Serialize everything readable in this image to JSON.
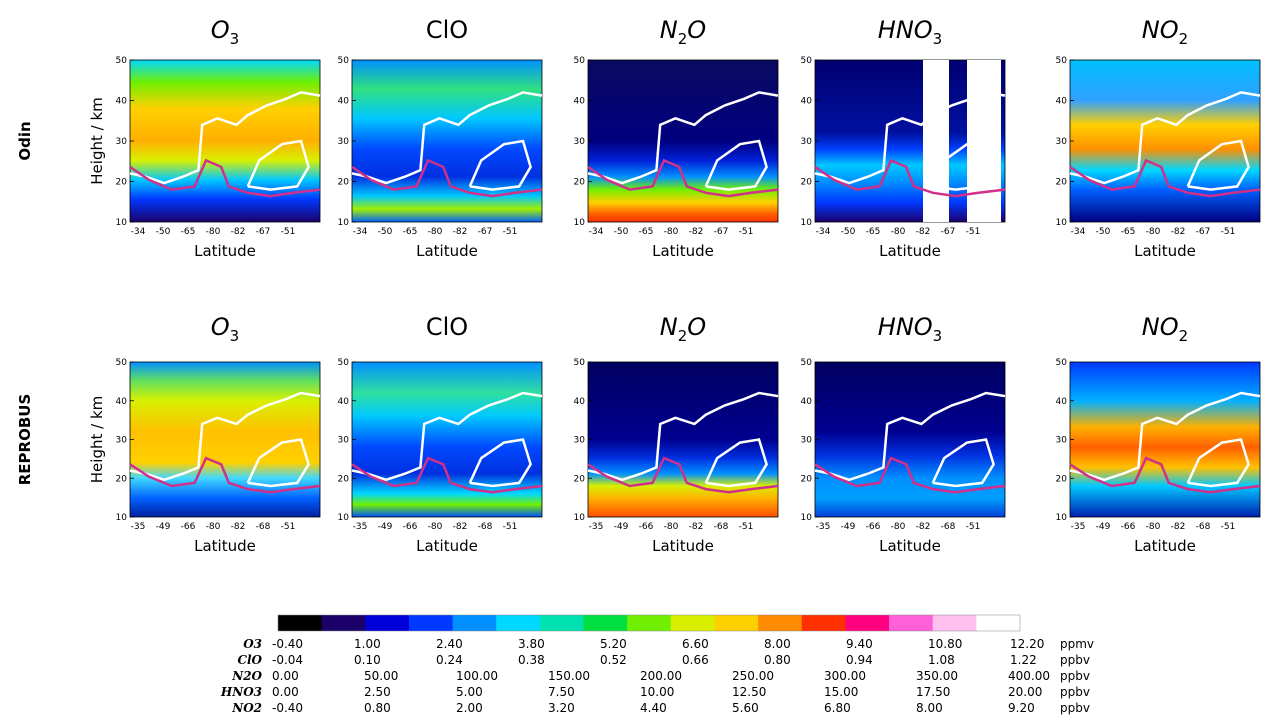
{
  "chart_data": {
    "type": "heatmap",
    "rows": [
      {
        "name": "Odin",
        "x_ticks": [
          "-34",
          "-50",
          "-65",
          "-80",
          "-82",
          "-67",
          "-51"
        ]
      },
      {
        "name": "REPROBUS",
        "x_ticks": [
          "-35",
          "-49",
          "-66",
          "-80",
          "-82",
          "-68",
          "-51"
        ]
      }
    ],
    "panels": [
      {
        "title": "O<tspan font-size='15' dy='6'>3</tspan>",
        "title_plain": "O3",
        "profile": "o3"
      },
      {
        "title": "ClO",
        "title_plain": "ClO",
        "profile": "clo"
      },
      {
        "title": "N<tspan font-size='15' dy='6'>2</tspan><tspan dy='-6'>O</tspan>",
        "title_plain": "N2O",
        "profile": "n2o"
      },
      {
        "title": "HNO<tspan font-size='15' dy='6'>3</tspan>",
        "title_plain": "HNO3",
        "profile": "hno3"
      },
      {
        "title": "NO<tspan font-size='15' dy='6'>2</tspan>",
        "title_plain": "NO2",
        "profile": "no2"
      }
    ],
    "titles": {
      "o3": "O",
      "o3_sub": "3",
      "clo": "ClO",
      "n2o_a": "N",
      "n2o_sub": "2",
      "n2o_b": "O",
      "hno3": "HNO",
      "hno3_sub": "3",
      "no2": "NO",
      "no2_sub": "2"
    },
    "xlabel": "Latitude",
    "ylabel": "Height / km",
    "y_ticks": [
      "50",
      "40",
      "30",
      "20",
      "10"
    ],
    "ylim": [
      10,
      50
    ],
    "colorbar": {
      "scale": [
        {
          "species": "O3",
          "values": [
            "-0.40",
            "1.00",
            "2.40",
            "3.80",
            "5.20",
            "6.60",
            "8.00",
            "9.40",
            "10.80",
            "12.20"
          ],
          "unit": "ppmv"
        },
        {
          "species": "ClO",
          "values": [
            "-0.04",
            "0.10",
            "0.24",
            "0.38",
            "0.52",
            "0.66",
            "0.80",
            "0.94",
            "1.08",
            "1.22"
          ],
          "unit": "ppbv"
        },
        {
          "species": "N2O",
          "values": [
            "0.00",
            "50.00",
            "100.00",
            "150.00",
            "200.00",
            "250.00",
            "300.00",
            "350.00",
            "400.00"
          ],
          "unit": "ppbv"
        },
        {
          "species": "HNO3",
          "values": [
            "0.00",
            "2.50",
            "5.00",
            "7.50",
            "10.00",
            "12.50",
            "15.00",
            "17.50",
            "20.00"
          ],
          "unit": "ppbv"
        },
        {
          "species": "NO2",
          "values": [
            "-0.40",
            "0.80",
            "2.00",
            "3.20",
            "4.40",
            "5.60",
            "6.80",
            "8.00",
            "9.20"
          ],
          "unit": "ppbv"
        }
      ],
      "colors": [
        "#000000",
        "#1b006a",
        "#0000d8",
        "#0038ff",
        "#0090ff",
        "#00d8ff",
        "#00e0b0",
        "#00e040",
        "#70f000",
        "#d8f000",
        "#ffd000",
        "#ff8c00",
        "#ff3000",
        "#ff0080",
        "#ff60d8",
        "#ffc0f0",
        "#ffffff"
      ]
    }
  }
}
